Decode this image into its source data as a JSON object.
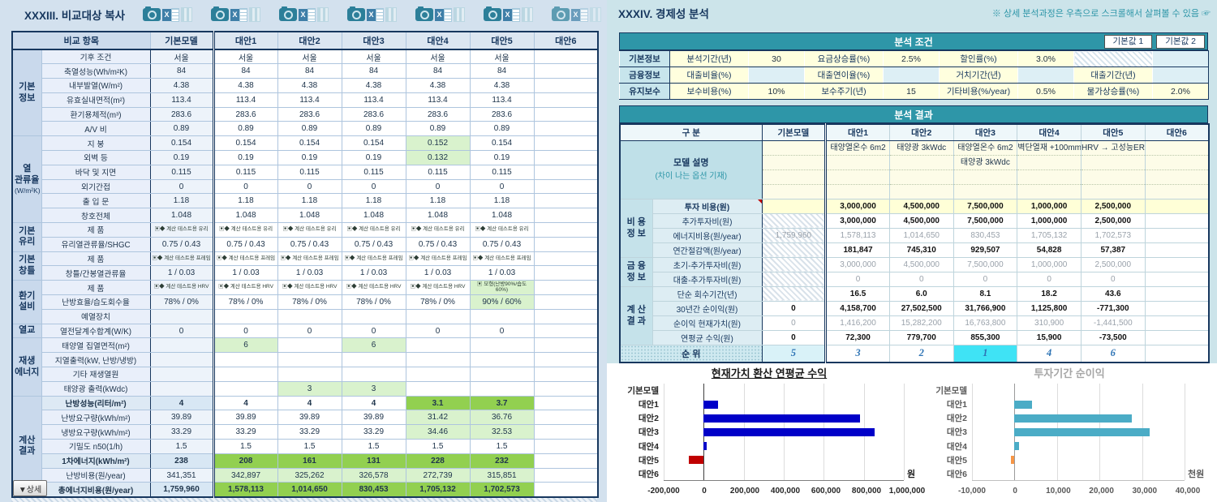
{
  "left": {
    "title": "XXXIII. 비교대상 복사",
    "icon_group_count": 7,
    "icons": {
      "camera": "camera-icon",
      "excel": "excel-export-icon",
      "excel_glyph": "X",
      "grid": "table-columns-icon"
    },
    "detail_button": "▼상세"
  },
  "left_table": {
    "header": [
      "비교 항목",
      "기본모델",
      "대안1",
      "대안2",
      "대안3",
      "대안4",
      "대안5",
      "대안6"
    ],
    "sections": [
      {
        "label": "기본\n정보",
        "rows": [
          {
            "item": "기후 조건",
            "values": [
              "서울",
              "서울",
              "서울",
              "서울",
              "서울",
              "서울",
              ""
            ]
          },
          {
            "item": "축열성능(Wh/m²K)",
            "values": [
              "84",
              "84",
              "84",
              "84",
              "84",
              "84",
              ""
            ]
          },
          {
            "item": "내부발열(W/m²)",
            "values": [
              "4.38",
              "4.38",
              "4.38",
              "4.38",
              "4.38",
              "4.38",
              ""
            ]
          },
          {
            "item": "유효실내면적(m²)",
            "values": [
              "113.4",
              "113.4",
              "113.4",
              "113.4",
              "113.4",
              "113.4",
              ""
            ]
          },
          {
            "item": "환기용체적(m³)",
            "values": [
              "283.6",
              "283.6",
              "283.6",
              "283.6",
              "283.6",
              "283.6",
              ""
            ]
          },
          {
            "item": "A/V 비",
            "values": [
              "0.89",
              "0.89",
              "0.89",
              "0.89",
              "0.89",
              "0.89",
              ""
            ]
          }
        ]
      },
      {
        "label": "열\n관류율",
        "sub": "(W/m²K)",
        "rows": [
          {
            "item": "지 붕",
            "values": [
              "0.154",
              "0.154",
              "0.154",
              "0.154",
              "0.152",
              "0.154",
              ""
            ],
            "vcls": [
              "",
              "",
              "",
              "",
              "lg",
              "",
              ""
            ]
          },
          {
            "item": "외벽 등",
            "values": [
              "0.19",
              "0.19",
              "0.19",
              "0.19",
              "0.132",
              "0.19",
              ""
            ],
            "vcls": [
              "",
              "",
              "",
              "",
              "lg",
              "",
              ""
            ]
          },
          {
            "item": "바닥 및 지면",
            "values": [
              "0.115",
              "0.115",
              "0.115",
              "0.115",
              "0.115",
              "0.115",
              ""
            ]
          },
          {
            "item": "외기간접",
            "values": [
              "0",
              "0",
              "0",
              "0",
              "0",
              "0",
              ""
            ]
          },
          {
            "item": "출 입 문",
            "values": [
              "1.18",
              "1.18",
              "1.18",
              "1.18",
              "1.18",
              "1.18",
              ""
            ]
          },
          {
            "item": "창호전체",
            "values": [
              "1.048",
              "1.048",
              "1.048",
              "1.048",
              "1.048",
              "1.048",
              ""
            ]
          }
        ]
      },
      {
        "label": "기본\n유리",
        "rows": [
          {
            "item": "제 품",
            "tiny": true,
            "values": [
              "▣◆ 계산 테스트용 유리",
              "▣◆ 계산 테스트용 유리",
              "▣◆ 계산 테스트용 유리",
              "▣◆ 계산 테스트용 유리",
              "▣◆ 계산 테스트용 유리",
              "▣◆ 계산 테스트용 유리",
              ""
            ]
          },
          {
            "item": "유리열관류율/SHGC",
            "values": [
              "0.75 / 0.43",
              "0.75 / 0.43",
              "0.75 / 0.43",
              "0.75 / 0.43",
              "0.75 / 0.43",
              "0.75 / 0.43",
              ""
            ]
          }
        ]
      },
      {
        "label": "기본\n창틀",
        "rows": [
          {
            "item": "제 품",
            "tiny": true,
            "values": [
              "▣◆ 계산 테스트용 프레임",
              "▣◆ 계산 테스트용 프레임",
              "▣◆ 계산 테스트용 프레임",
              "▣◆ 계산 테스트용 프레임",
              "▣◆ 계산 테스트용 프레임",
              "▣◆ 계산 테스트용 프레임",
              ""
            ]
          },
          {
            "item": "창틀/간봉열관류율",
            "values": [
              "1 / 0.03",
              "1 / 0.03",
              "1 / 0.03",
              "1 / 0.03",
              "1 / 0.03",
              "1 / 0.03",
              ""
            ]
          }
        ]
      },
      {
        "label": "환기\n설비",
        "rows": [
          {
            "item": "제 품",
            "tiny": true,
            "values": [
              "▣◆ 계산 테스트용 HRV",
              "▣◆ 계산 테스트용 HRV",
              "▣◆ 계산 테스트용 HRV",
              "▣◆ 계산 테스트용 HRV",
              "▣◆ 계산 테스트용 HRV",
              "▣ 모형(난방90%/습도60%)",
              ""
            ],
            "vcls": [
              "",
              "",
              "",
              "",
              "",
              "lg",
              ""
            ]
          },
          {
            "item": "난방효율/습도회수율",
            "values": [
              "78% / 0%",
              "78% / 0%",
              "78% / 0%",
              "78% / 0%",
              "78% / 0%",
              "90% / 60%",
              ""
            ],
            "vcls": [
              "",
              "",
              "",
              "",
              "",
              "lg",
              ""
            ]
          },
          {
            "item": "예열장치",
            "values": [
              "",
              "",
              "",
              "",
              "",
              "",
              ""
            ]
          }
        ]
      },
      {
        "label": "열교",
        "rows": [
          {
            "item": "열전달계수합계(W/K)",
            "values": [
              "0",
              "0",
              "0",
              "0",
              "0",
              "0",
              ""
            ]
          }
        ]
      },
      {
        "label": "재생\n에너지",
        "rows": [
          {
            "item": "태양열 집열면적(m²)",
            "values": [
              "",
              "6",
              "",
              "6",
              "",
              "",
              ""
            ],
            "vcls": [
              "",
              "lg",
              "",
              "lg",
              "",
              "",
              ""
            ]
          },
          {
            "item": "지열출력(kW, 난방/냉방)",
            "values": [
              "",
              "",
              "",
              "",
              "",
              "",
              ""
            ]
          },
          {
            "item": "기타 재생열원",
            "values": [
              "",
              "",
              "",
              "",
              "",
              "",
              ""
            ]
          },
          {
            "item": "태양광 출력(kWdc)",
            "values": [
              "",
              "",
              "3",
              "3",
              "",
              "",
              ""
            ],
            "vcls": [
              "",
              "",
              "lg",
              "lg",
              "",
              "",
              ""
            ]
          }
        ]
      },
      {
        "label": "계산\n결과",
        "rows": [
          {
            "item": "난방성능(리터/m²)",
            "bold": true,
            "values": [
              "4",
              "4",
              "4",
              "4",
              "3.1",
              "3.7",
              ""
            ],
            "vcls": [
              "",
              "",
              "",
              "",
              "g",
              "g",
              ""
            ]
          },
          {
            "item": "난방요구량(kWh/m²)",
            "values": [
              "39.89",
              "39.89",
              "39.89",
              "39.89",
              "31.42",
              "36.76",
              ""
            ],
            "vcls": [
              "",
              "",
              "",
              "",
              "lg",
              "lg",
              ""
            ]
          },
          {
            "item": "냉방요구량(kWh/m²)",
            "values": [
              "33.29",
              "33.29",
              "33.29",
              "33.29",
              "34.46",
              "32.53",
              ""
            ],
            "vcls": [
              "",
              "",
              "",
              "",
              "lg",
              "lg",
              ""
            ]
          },
          {
            "item": "기밀도 n50(1/h)",
            "values": [
              "1.5",
              "1.5",
              "1.5",
              "1.5",
              "1.5",
              "1.5",
              ""
            ]
          },
          {
            "item": "1차에너지(kWh/m²)",
            "bold": true,
            "values": [
              "238",
              "208",
              "161",
              "131",
              "228",
              "232",
              ""
            ],
            "vcls": [
              "",
              "g",
              "g",
              "g",
              "g",
              "g",
              ""
            ]
          },
          {
            "item": "난방비용(원/year)",
            "values": [
              "341,351",
              "342,897",
              "325,262",
              "326,578",
              "272,739",
              "315,851",
              ""
            ],
            "vcls": [
              "",
              "lg",
              "lg",
              "lg",
              "lg",
              "lg",
              ""
            ]
          },
          {
            "item": "총에너지비용(원/year)",
            "bold": true,
            "values": [
              "1,759,960",
              "1,578,113",
              "1,014,650",
              "830,453",
              "1,705,132",
              "1,702,573",
              ""
            ],
            "vcls": [
              "",
              "g",
              "g",
              "g",
              "g",
              "g",
              ""
            ]
          }
        ]
      }
    ]
  },
  "right": {
    "title": "XXXIV. 경제성 분석",
    "note": "※ 상세 분석과정은 우측으로 스크롤해서 살펴볼 수 있음 ☞",
    "cond": {
      "title": "분석 조건",
      "buttons": [
        "기본값 1",
        "기본값 2"
      ],
      "rows": [
        {
          "header": "기본정보",
          "cells": [
            [
              "분석기간(년)",
              "lab"
            ],
            [
              "30",
              "val"
            ],
            [
              "요금상승률(%)",
              "lab"
            ],
            [
              "2.5%",
              "val"
            ],
            [
              "할인률(%)",
              "lab"
            ],
            [
              "3.0%",
              "val"
            ],
            [
              "",
              "hatch"
            ],
            [
              "",
              "emp"
            ]
          ]
        },
        {
          "header": "금융정보",
          "cells": [
            [
              "대출비율(%)",
              "lab"
            ],
            [
              "",
              "emp"
            ],
            [
              "대출연이율(%)",
              "lab"
            ],
            [
              "",
              "emp"
            ],
            [
              "거치기간(년)",
              "lab"
            ],
            [
              "",
              "emp"
            ],
            [
              "대출기간(년)",
              "lab"
            ],
            [
              "",
              "emp"
            ]
          ]
        },
        {
          "header": "유지보수",
          "cells": [
            [
              "보수비용(%)",
              "lab"
            ],
            [
              "10%",
              "val"
            ],
            [
              "보수주기(년)",
              "lab"
            ],
            [
              "15",
              "val"
            ],
            [
              "기타비용(%/year)",
              "lab"
            ],
            [
              "0.5%",
              "val"
            ],
            [
              "물가상승률(%)",
              "lab"
            ],
            [
              "2.0%",
              "val"
            ]
          ]
        }
      ]
    },
    "result": {
      "title": "분석 결과",
      "header": [
        "구  분",
        "기본모델",
        "대안1",
        "대안2",
        "대안3",
        "대안4",
        "대안5",
        "대안6"
      ],
      "model_desc": {
        "label": "모델 설명",
        "sub": "(차이 나는 옵션 기재)",
        "lines": [
          [],
          [
            "태양열온수 6m2"
          ],
          [
            "태양광 3kWdc"
          ],
          [
            "태양열온수 6m2",
            "태양광 3kWdc"
          ],
          [
            "벽단열재 +100mm"
          ],
          [
            "HRV → 고성능ERV"
          ],
          []
        ]
      },
      "sections": [
        {
          "label": "비 용\n정 보",
          "rows": [
            {
              "item": "투자 비용(원)",
              "style": "invest",
              "values": [
                "",
                "3,000,000",
                "4,500,000",
                "7,500,000",
                "1,000,000",
                "2,500,000",
                ""
              ]
            },
            {
              "item": "추가투자비(원)",
              "base": "hatch",
              "vstyle": "bold",
              "values": [
                "",
                "3,000,000",
                "4,500,000",
                "7,500,000",
                "1,000,000",
                "2,500,000",
                ""
              ]
            },
            {
              "item": "에너지비용(원/year)",
              "base": "hatch",
              "vstyle": "gray",
              "values": [
                "1,759,960",
                "1,578,113",
                "1,014,650",
                "830,453",
                "1,705,132",
                "1,702,573",
                ""
              ]
            },
            {
              "item": "연간절감액(원/year)",
              "base": "hatch",
              "vstyle": "bold",
              "values": [
                "",
                "181,847",
                "745,310",
                "929,507",
                "54,828",
                "57,387",
                ""
              ]
            }
          ]
        },
        {
          "label": "금 융\n정 보",
          "rows": [
            {
              "item": "초기-추가투자비(원)",
              "base": "hatch",
              "vstyle": "gray",
              "values": [
                "",
                "3,000,000",
                "4,500,000",
                "7,500,000",
                "1,000,000",
                "2,500,000",
                ""
              ]
            },
            {
              "item": "대출-추가투자비(원)",
              "base": "hatch",
              "vstyle": "gray",
              "values": [
                "",
                "0",
                "0",
                "0",
                "0",
                "0",
                ""
              ]
            }
          ]
        },
        {
          "label": "계 산\n결 과",
          "rows": [
            {
              "item": "단순 회수기간(년)",
              "base": "hatch",
              "vstyle": "bold",
              "values": [
                "",
                "16.5",
                "6.0",
                "8.1",
                "18.2",
                "43.6",
                ""
              ]
            },
            {
              "item": "30년간 순이익(원)",
              "vstyle": "bold",
              "values": [
                "0",
                "4,158,700",
                "27,502,500",
                "31,766,900",
                "1,125,800",
                "-771,300",
                ""
              ]
            },
            {
              "item": "순이익 현재가치(원)",
              "vstyle": "gray",
              "values": [
                "0",
                "1,416,200",
                "15,282,200",
                "16,763,800",
                "310,900",
                "-1,441,500",
                ""
              ]
            },
            {
              "item": "연평균 수익(원)",
              "vstyle": "bold",
              "values": [
                "0",
                "72,300",
                "779,700",
                "855,300",
                "15,900",
                "-73,500",
                ""
              ]
            }
          ]
        }
      ],
      "rank": {
        "label": "순  위",
        "values": [
          "5",
          "3",
          "2",
          "1",
          "4",
          "6",
          ""
        ],
        "best_index": 3
      }
    }
  },
  "chart_data": [
    {
      "type": "bar",
      "orientation": "horizontal",
      "title": "현재가치 환산 연평균 수익",
      "categories": [
        "기본모델",
        "대안1",
        "대안2",
        "대안3",
        "대안4",
        "대안5",
        "대안6"
      ],
      "values": [
        0,
        72300,
        779700,
        855300,
        15900,
        -73500,
        0
      ],
      "unit": "원",
      "xlim": [
        -200000,
        1000000
      ],
      "xticks": [
        -200000,
        0,
        200000,
        400000,
        600000,
        800000,
        1000000
      ],
      "bar_color": "#0000c8",
      "negative_color": "#c00000",
      "grid": true,
      "legend": "none"
    },
    {
      "type": "bar",
      "orientation": "horizontal",
      "title": "투자기간 순이익",
      "categories": [
        "기본모델",
        "대안1",
        "대안2",
        "대안3",
        "대안4",
        "대안5",
        "대안6"
      ],
      "values": [
        0,
        4159,
        27503,
        31767,
        1126,
        -771,
        0
      ],
      "unit": "천원",
      "xlim": [
        -10000,
        40000
      ],
      "xticks": [
        -10000,
        0,
        10000,
        20000,
        30000,
        40000
      ],
      "bar_color": "#4bacc6",
      "negative_color": "#f79646",
      "grid": true,
      "legend": "none"
    }
  ]
}
